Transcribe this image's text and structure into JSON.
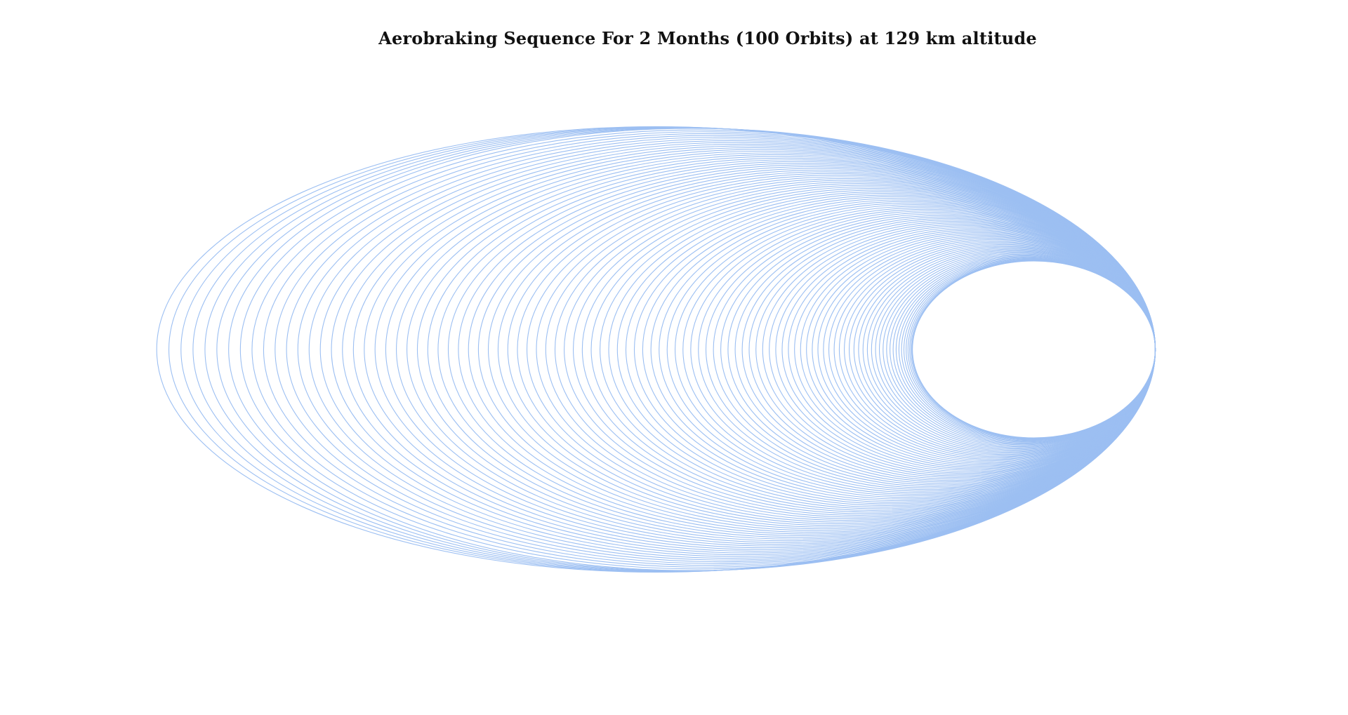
{
  "chart_data": {
    "type": "line",
    "title": "Aerobraking Sequence For 2 Months (100 Orbits) at 129 km altitude",
    "xlabel": "",
    "ylabel": "",
    "axes_visible": false,
    "grid": false,
    "legend": "none",
    "orbit_count": 100,
    "orbit_color": "#9cbff2",
    "planet_color": "#ffffff",
    "planet_radius": 1.0,
    "periapsis_radius": 1.06,
    "initial_apoapsis_radius": 14.4,
    "final_apoapsis_radius": 2.7,
    "xlim": [
      -15.3,
      3.2
    ],
    "ylim": [
      -3.8,
      3.8
    ]
  }
}
